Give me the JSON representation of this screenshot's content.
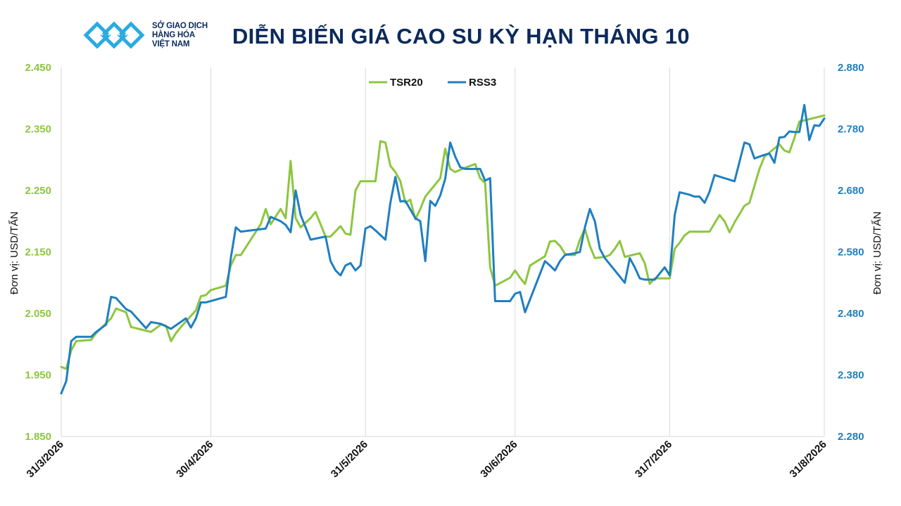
{
  "logo": {
    "lines": [
      "SỞ GIAO DỊCH",
      "HÀNG HÓA",
      "VIỆT NAM"
    ],
    "brand_color": "#29abe2"
  },
  "chart_data": {
    "type": "line",
    "title": "DIỄN BIẾN GIÁ CAO SU KỲ HẠN THÁNG 10",
    "ylabel_left": "Đơn vị: USD/TẤN",
    "ylabel_right": "Đơn vị: USD/TẤN",
    "x_tick_labels": [
      "31/3/2026",
      "30/4/2026",
      "31/5/2026",
      "30/6/2026",
      "31/7/2026",
      "31/8/2026"
    ],
    "xlim": [
      "2026-03-31",
      "2026-08-31"
    ],
    "y_left": {
      "min": 1850,
      "max": 2450,
      "step": 100,
      "tick_labels": [
        "1.850",
        "1.950",
        "2.050",
        "2.150",
        "2.250",
        "2.350",
        "2.450"
      ],
      "color": "#8dc63f"
    },
    "y_right": {
      "min": 2280,
      "max": 2880,
      "step": 100,
      "tick_labels": [
        "2.280",
        "2.380",
        "2.480",
        "2.580",
        "2.680",
        "2.780",
        "2.880"
      ],
      "color": "#1f7fc0"
    },
    "grid": {
      "vertical": true,
      "horizontal": false
    },
    "legend": {
      "position": "top-center"
    },
    "series": [
      {
        "name": "TSR20",
        "axis": "left",
        "color": "#8dc63f",
        "points": [
          [
            "2026-03-31",
            1963
          ],
          [
            "2026-04-01",
            1960
          ],
          [
            "2026-04-02",
            1990
          ],
          [
            "2026-04-03",
            2005
          ],
          [
            "2026-04-06",
            2007
          ],
          [
            "2026-04-07",
            2018
          ],
          [
            "2026-04-08",
            2026
          ],
          [
            "2026-04-10",
            2042
          ],
          [
            "2026-04-11",
            2058
          ],
          [
            "2026-04-13",
            2052
          ],
          [
            "2026-04-14",
            2028
          ],
          [
            "2026-04-17",
            2022
          ],
          [
            "2026-04-18",
            2020
          ],
          [
            "2026-04-20",
            2032
          ],
          [
            "2026-04-21",
            2030
          ],
          [
            "2026-04-22",
            2005
          ],
          [
            "2026-04-23",
            2018
          ],
          [
            "2026-04-24",
            2028
          ],
          [
            "2026-04-27",
            2055
          ],
          [
            "2026-04-28",
            2078
          ],
          [
            "2026-04-29",
            2080
          ],
          [
            "2026-04-30",
            2088
          ],
          [
            "2026-05-03",
            2095
          ],
          [
            "2026-05-04",
            2128
          ],
          [
            "2026-05-05",
            2145
          ],
          [
            "2026-05-06",
            2145
          ],
          [
            "2026-05-10",
            2195
          ],
          [
            "2026-05-11",
            2220
          ],
          [
            "2026-05-12",
            2195
          ],
          [
            "2026-05-14",
            2220
          ],
          [
            "2026-05-15",
            2205
          ],
          [
            "2026-05-16",
            2298
          ],
          [
            "2026-05-17",
            2205
          ],
          [
            "2026-05-18",
            2190
          ],
          [
            "2026-05-20",
            2205
          ],
          [
            "2026-05-21",
            2215
          ],
          [
            "2026-05-22",
            2195
          ],
          [
            "2026-05-23",
            2175
          ],
          [
            "2026-05-24",
            2175
          ],
          [
            "2026-05-26",
            2192
          ],
          [
            "2026-05-27",
            2180
          ],
          [
            "2026-05-28",
            2178
          ],
          [
            "2026-05-29",
            2250
          ],
          [
            "2026-05-30",
            2265
          ],
          [
            "2026-05-31",
            2265
          ],
          [
            "2026-06-02",
            2265
          ],
          [
            "2026-06-03",
            2330
          ],
          [
            "2026-06-04",
            2328
          ],
          [
            "2026-06-05",
            2290
          ],
          [
            "2026-06-06",
            2280
          ],
          [
            "2026-06-07",
            2265
          ],
          [
            "2026-06-08",
            2230
          ],
          [
            "2026-06-09",
            2235
          ],
          [
            "2026-06-10",
            2203
          ],
          [
            "2026-06-11",
            2220
          ],
          [
            "2026-06-12",
            2240
          ],
          [
            "2026-06-15",
            2270
          ],
          [
            "2026-06-16",
            2318
          ],
          [
            "2026-06-17",
            2285
          ],
          [
            "2026-06-18",
            2280
          ],
          [
            "2026-06-20",
            2287
          ],
          [
            "2026-06-22",
            2293
          ],
          [
            "2026-06-23",
            2270
          ],
          [
            "2026-06-24",
            2262
          ],
          [
            "2026-06-25",
            2125
          ],
          [
            "2026-06-26",
            2095
          ],
          [
            "2026-06-29",
            2108
          ],
          [
            "2026-06-30",
            2120
          ],
          [
            "2026-07-01",
            2108
          ],
          [
            "2026-07-02",
            2098
          ],
          [
            "2026-07-03",
            2128
          ],
          [
            "2026-07-06",
            2143
          ],
          [
            "2026-07-07",
            2167
          ],
          [
            "2026-07-08",
            2168
          ],
          [
            "2026-07-09",
            2160
          ],
          [
            "2026-07-10",
            2147
          ],
          [
            "2026-07-11",
            2145
          ],
          [
            "2026-07-12",
            2145
          ],
          [
            "2026-07-13",
            2170
          ],
          [
            "2026-07-14",
            2188
          ],
          [
            "2026-07-15",
            2160
          ],
          [
            "2026-07-16",
            2140
          ],
          [
            "2026-07-18",
            2142
          ],
          [
            "2026-07-19",
            2145
          ],
          [
            "2026-07-20",
            2155
          ],
          [
            "2026-07-21",
            2168
          ],
          [
            "2026-07-22",
            2142
          ],
          [
            "2026-07-25",
            2148
          ],
          [
            "2026-07-26",
            2132
          ],
          [
            "2026-07-27",
            2098
          ],
          [
            "2026-07-28",
            2107
          ],
          [
            "2026-07-29",
            2107
          ],
          [
            "2026-07-31",
            2107
          ],
          [
            "2026-08-01",
            2155
          ],
          [
            "2026-08-02",
            2165
          ],
          [
            "2026-08-03",
            2177
          ],
          [
            "2026-08-04",
            2183
          ],
          [
            "2026-08-05",
            2183
          ],
          [
            "2026-08-08",
            2183
          ],
          [
            "2026-08-10",
            2210
          ],
          [
            "2026-08-11",
            2200
          ],
          [
            "2026-08-12",
            2182
          ],
          [
            "2026-08-13",
            2198
          ],
          [
            "2026-08-15",
            2225
          ],
          [
            "2026-08-16",
            2230
          ],
          [
            "2026-08-18",
            2285
          ],
          [
            "2026-08-19",
            2305
          ],
          [
            "2026-08-22",
            2325
          ],
          [
            "2026-08-23",
            2315
          ],
          [
            "2026-08-24",
            2312
          ],
          [
            "2026-08-25",
            2335
          ],
          [
            "2026-08-26",
            2362
          ],
          [
            "2026-08-31",
            2372
          ]
        ]
      },
      {
        "name": "RSS3",
        "axis": "right",
        "color": "#1f7fc0",
        "points": [
          [
            "2026-03-31",
            2350
          ],
          [
            "2026-04-01",
            2370
          ],
          [
            "2026-04-02",
            2435
          ],
          [
            "2026-04-03",
            2442
          ],
          [
            "2026-04-06",
            2442
          ],
          [
            "2026-04-07",
            2450
          ],
          [
            "2026-04-09",
            2462
          ],
          [
            "2026-04-10",
            2507
          ],
          [
            "2026-04-11",
            2505
          ],
          [
            "2026-04-13",
            2487
          ],
          [
            "2026-04-14",
            2483
          ],
          [
            "2026-04-17",
            2456
          ],
          [
            "2026-04-18",
            2466
          ],
          [
            "2026-04-20",
            2463
          ],
          [
            "2026-04-22",
            2455
          ],
          [
            "2026-04-25",
            2472
          ],
          [
            "2026-04-26",
            2457
          ],
          [
            "2026-04-27",
            2472
          ],
          [
            "2026-04-28",
            2498
          ],
          [
            "2026-04-29",
            2498
          ],
          [
            "2026-05-03",
            2507
          ],
          [
            "2026-05-04",
            2570
          ],
          [
            "2026-05-05",
            2620
          ],
          [
            "2026-05-06",
            2613
          ],
          [
            "2026-05-08",
            2615
          ],
          [
            "2026-05-11",
            2618
          ],
          [
            "2026-05-12",
            2637
          ],
          [
            "2026-05-14",
            2630
          ],
          [
            "2026-05-15",
            2624
          ],
          [
            "2026-05-16",
            2612
          ],
          [
            "2026-05-17",
            2680
          ],
          [
            "2026-05-18",
            2640
          ],
          [
            "2026-05-20",
            2600
          ],
          [
            "2026-05-23",
            2605
          ],
          [
            "2026-05-24",
            2565
          ],
          [
            "2026-05-25",
            2550
          ],
          [
            "2026-05-26",
            2542
          ],
          [
            "2026-05-27",
            2558
          ],
          [
            "2026-05-28",
            2562
          ],
          [
            "2026-05-29",
            2550
          ],
          [
            "2026-05-30",
            2558
          ],
          [
            "2026-05-31",
            2618
          ],
          [
            "2026-06-01",
            2622
          ],
          [
            "2026-06-02",
            2615
          ],
          [
            "2026-06-04",
            2600
          ],
          [
            "2026-06-05",
            2660
          ],
          [
            "2026-06-06",
            2702
          ],
          [
            "2026-06-07",
            2662
          ],
          [
            "2026-06-08",
            2663
          ],
          [
            "2026-06-10",
            2635
          ],
          [
            "2026-06-11",
            2630
          ],
          [
            "2026-06-12",
            2565
          ],
          [
            "2026-06-13",
            2663
          ],
          [
            "2026-06-14",
            2655
          ],
          [
            "2026-06-15",
            2672
          ],
          [
            "2026-06-16",
            2699
          ],
          [
            "2026-06-17",
            2758
          ],
          [
            "2026-06-18",
            2735
          ],
          [
            "2026-06-19",
            2718
          ],
          [
            "2026-06-20",
            2715
          ],
          [
            "2026-06-23",
            2715
          ],
          [
            "2026-06-24",
            2696
          ],
          [
            "2026-06-25",
            2700
          ],
          [
            "2026-06-26",
            2500
          ],
          [
            "2026-06-29",
            2500
          ],
          [
            "2026-06-30",
            2512
          ],
          [
            "2026-07-01",
            2515
          ],
          [
            "2026-07-02",
            2482
          ],
          [
            "2026-07-06",
            2565
          ],
          [
            "2026-07-07",
            2558
          ],
          [
            "2026-07-08",
            2550
          ],
          [
            "2026-07-09",
            2565
          ],
          [
            "2026-07-10",
            2575
          ],
          [
            "2026-07-12",
            2578
          ],
          [
            "2026-07-13",
            2580
          ],
          [
            "2026-07-14",
            2620
          ],
          [
            "2026-07-15",
            2650
          ],
          [
            "2026-07-16",
            2630
          ],
          [
            "2026-07-17",
            2585
          ],
          [
            "2026-07-18",
            2570
          ],
          [
            "2026-07-22",
            2530
          ],
          [
            "2026-07-23",
            2570
          ],
          [
            "2026-07-24",
            2555
          ],
          [
            "2026-07-25",
            2537
          ],
          [
            "2026-07-26",
            2535
          ],
          [
            "2026-07-28",
            2535
          ],
          [
            "2026-07-30",
            2555
          ],
          [
            "2026-07-31",
            2542
          ],
          [
            "2026-08-01",
            2640
          ],
          [
            "2026-08-02",
            2677
          ],
          [
            "2026-08-04",
            2673
          ],
          [
            "2026-08-05",
            2670
          ],
          [
            "2026-08-06",
            2670
          ],
          [
            "2026-08-07",
            2660
          ],
          [
            "2026-08-08",
            2678
          ],
          [
            "2026-08-09",
            2705
          ],
          [
            "2026-08-11",
            2700
          ],
          [
            "2026-08-13",
            2695
          ],
          [
            "2026-08-15",
            2758
          ],
          [
            "2026-08-16",
            2755
          ],
          [
            "2026-08-17",
            2732
          ],
          [
            "2026-08-19",
            2738
          ],
          [
            "2026-08-20",
            2740
          ],
          [
            "2026-08-21",
            2725
          ],
          [
            "2026-08-22",
            2766
          ],
          [
            "2026-08-23",
            2767
          ],
          [
            "2026-08-24",
            2776
          ],
          [
            "2026-08-25",
            2775
          ],
          [
            "2026-08-26",
            2775
          ],
          [
            "2026-08-27",
            2819
          ],
          [
            "2026-08-28",
            2762
          ],
          [
            "2026-08-29",
            2786
          ],
          [
            "2026-08-30",
            2785
          ],
          [
            "2026-08-31",
            2797
          ]
        ]
      }
    ]
  }
}
